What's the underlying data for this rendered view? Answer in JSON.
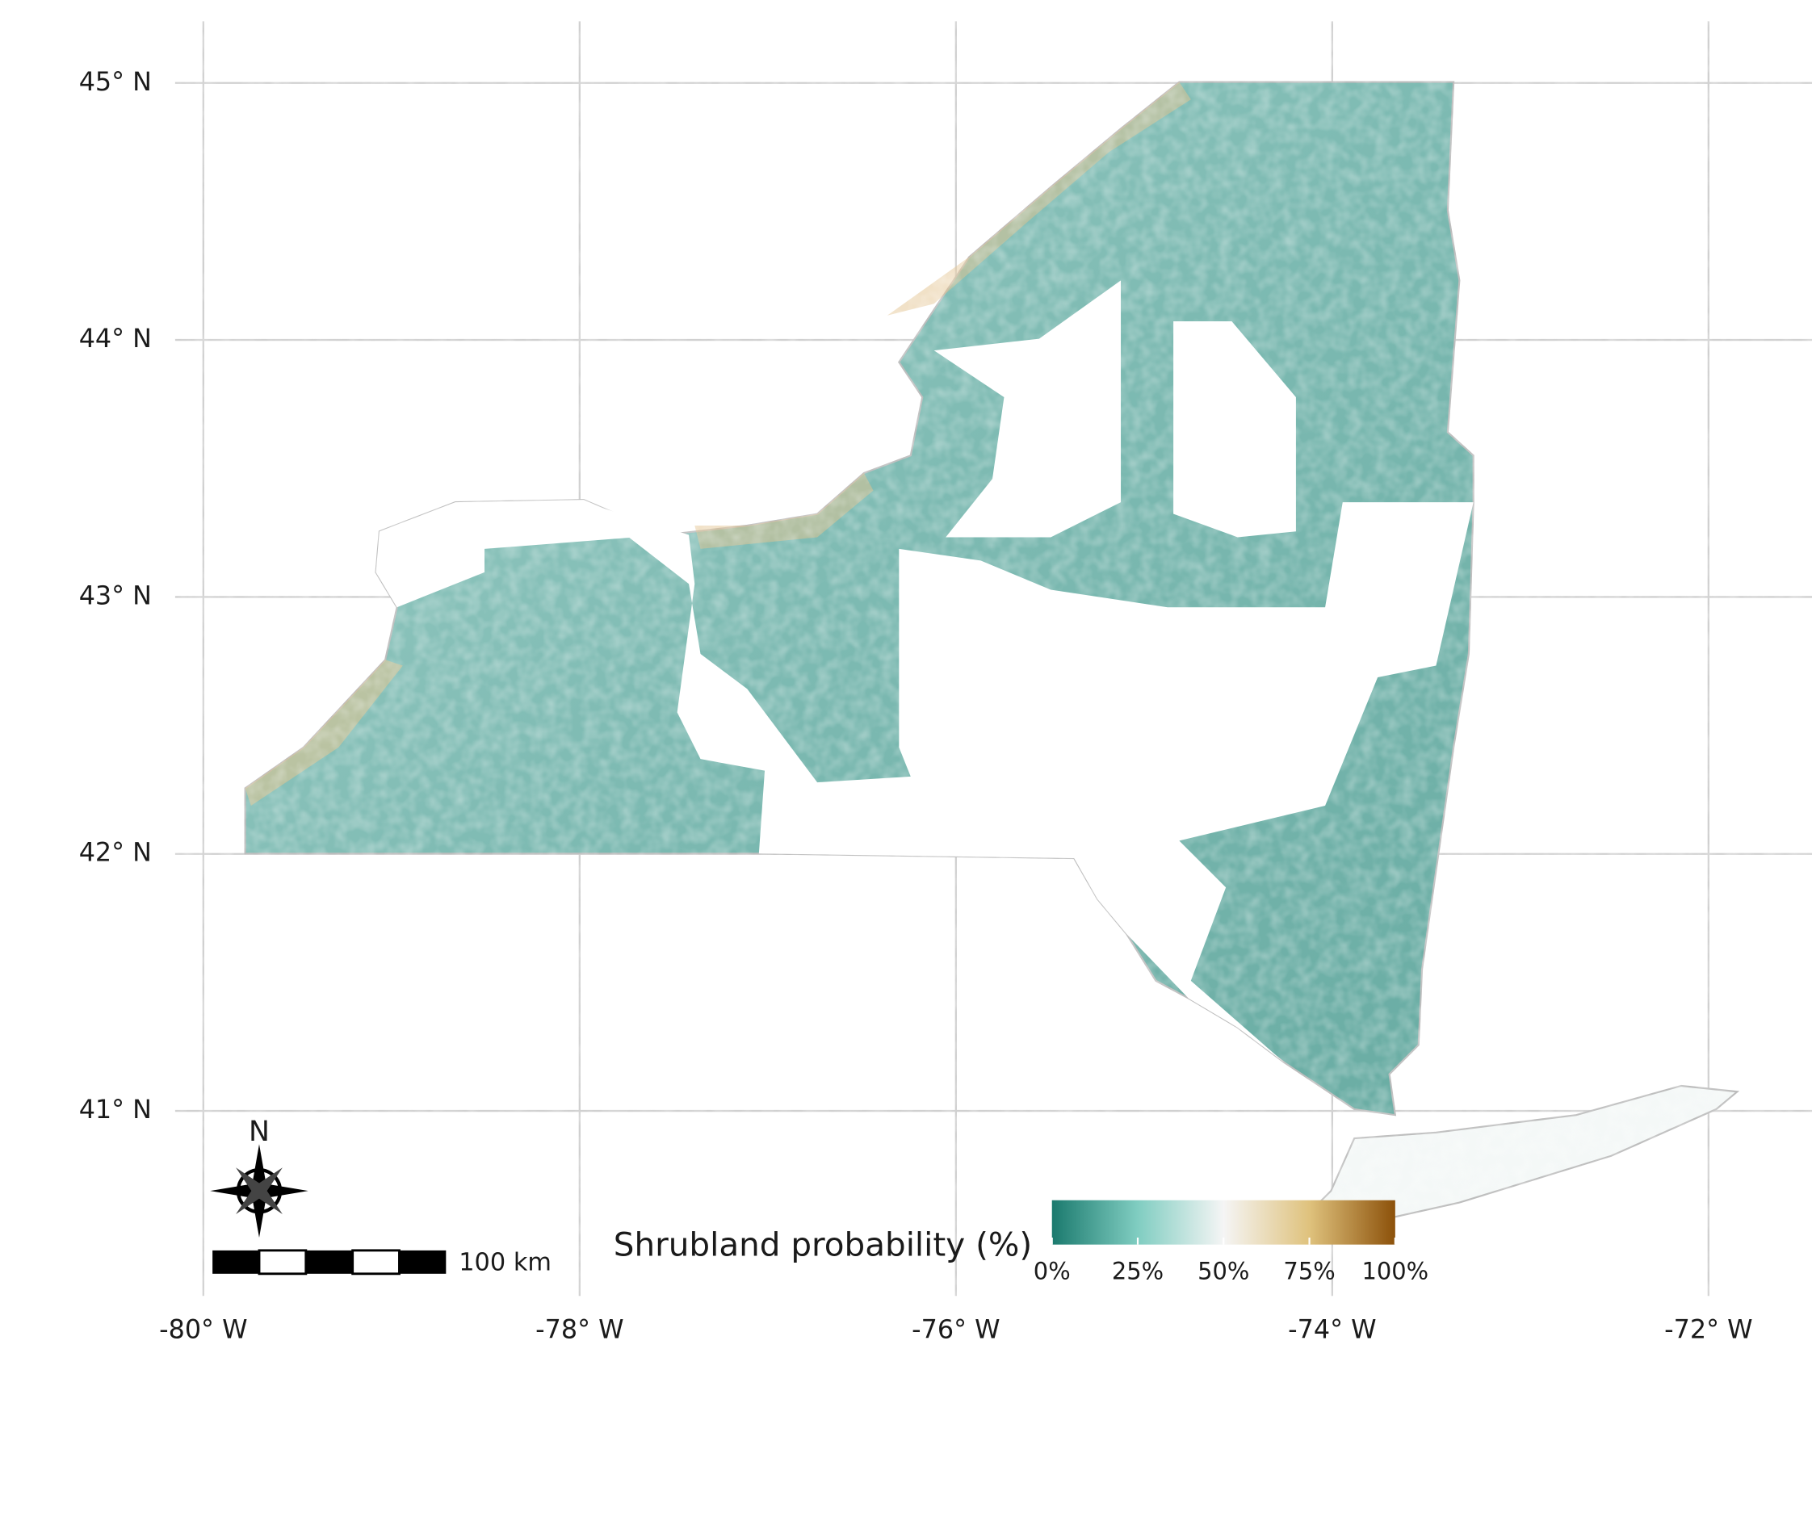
{
  "chart_data": {
    "type": "map",
    "xlim": [
      -80.15,
      -71.45
    ],
    "ylim": [
      40.28,
      45.24
    ],
    "xticks": [
      {
        "value": -80,
        "label": "-80° W"
      },
      {
        "value": -78,
        "label": "-78° W"
      },
      {
        "value": -76,
        "label": "-76° W"
      },
      {
        "value": -74,
        "label": "-74° W"
      },
      {
        "value": -72,
        "label": "-72° W"
      }
    ],
    "yticks": [
      {
        "value": 41,
        "label": "41° N"
      },
      {
        "value": 42,
        "label": "42° N"
      },
      {
        "value": 43,
        "label": "43° N"
      },
      {
        "value": 44,
        "label": "44° N"
      },
      {
        "value": 45,
        "label": "45° N"
      }
    ],
    "grid": true,
    "legend": {
      "title": "Shrubland probability (%)",
      "ticks": [
        {
          "value": 0,
          "label": "0%"
        },
        {
          "value": 25,
          "label": "25%"
        },
        {
          "value": 50,
          "label": "50%"
        },
        {
          "value": 75,
          "label": "75%"
        },
        {
          "value": 100,
          "label": "100%"
        }
      ],
      "colors": [
        "#1b7a6e",
        "#80cdc1",
        "#f5f5f5",
        "#dfc27d",
        "#8c510a"
      ]
    },
    "scale_bar": "100 km",
    "north_label": "N"
  }
}
